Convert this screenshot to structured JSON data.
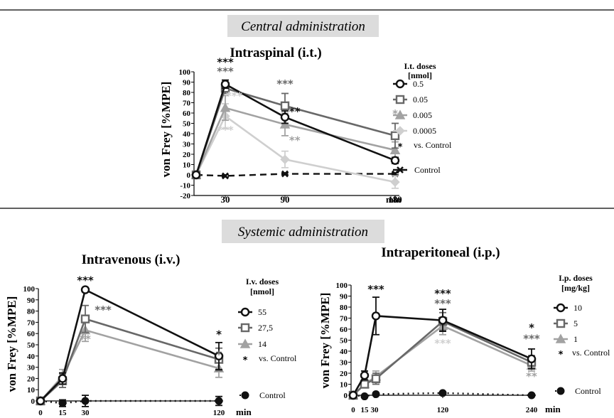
{
  "sections": {
    "central": "Central administration",
    "systemic": "Systemic administration"
  },
  "colors": {
    "black": "#111111",
    "dark": "#686868",
    "mid": "#a2a2a2",
    "light": "#cfcfcf",
    "band": "#dcdcdc"
  },
  "chart_data": [
    {
      "type": "line",
      "title": "Intraspinal (i.t.)",
      "ylabel": "von Frey [%MPE]",
      "xunit": "min",
      "xticks": [
        "30",
        "90",
        "180"
      ],
      "yticks": [
        "100",
        "90",
        "80",
        "70",
        "60",
        "50",
        "40",
        "30",
        "20",
        "10",
        "0",
        "-10",
        "-20"
      ],
      "ylim": [
        -20,
        100
      ],
      "legend_title_1": "I.t. doses",
      "legend_title_2": "[nmol]",
      "legend_note": "vs. Control",
      "series": [
        {
          "name": "0.5",
          "color": "#111111",
          "marker": "circle",
          "x": [
            0,
            30,
            90,
            180
          ],
          "y": [
            0,
            88,
            56,
            14
          ],
          "err": [
            0,
            4,
            6,
            3
          ]
        },
        {
          "name": "0.05",
          "color": "#686868",
          "marker": "square",
          "x": [
            0,
            30,
            90,
            180
          ],
          "y": [
            0,
            84,
            67,
            38
          ],
          "err": [
            0,
            5,
            12,
            12
          ]
        },
        {
          "name": "0.005",
          "color": "#a2a2a2",
          "marker": "triangle",
          "x": [
            0,
            30,
            90,
            180
          ],
          "y": [
            0,
            65,
            49,
            24
          ],
          "err": [
            0,
            12,
            11,
            8
          ]
        },
        {
          "name": "0.0005",
          "color": "#cfcfcf",
          "marker": "diamond",
          "x": [
            0,
            30,
            90,
            180
          ],
          "y": [
            0,
            57,
            15,
            -7
          ],
          "err": [
            0,
            12,
            8,
            6
          ]
        },
        {
          "name": "Control",
          "color": "#111111",
          "marker": "x",
          "dashed": true,
          "x": [
            0,
            30,
            90,
            180
          ],
          "y": [
            0,
            -1,
            1,
            1
          ],
          "err": [
            0,
            1,
            1,
            1
          ]
        }
      ],
      "annotations": [
        {
          "text": "***",
          "color": "#111111",
          "x": 30,
          "y": 106
        },
        {
          "text": "***",
          "color": "#686868",
          "x": 30,
          "y": 97
        },
        {
          "text": "***",
          "color": "#cfcfcf",
          "x": 39,
          "y": 73
        },
        {
          "text": "***",
          "color": "#cfcfcf",
          "x": 30,
          "y": 40
        },
        {
          "text": "***",
          "color": "#686868",
          "x": 90,
          "y": 85
        },
        {
          "text": "**",
          "color": "#111111",
          "x": 98,
          "y": 58
        },
        {
          "text": "**",
          "color": "#a2a2a2",
          "x": 98,
          "y": 30
        },
        {
          "text": "*",
          "color": "#a2a2a2",
          "x": 180,
          "y": 56
        }
      ]
    },
    {
      "type": "line",
      "title": "Intravenous (i.v.)",
      "ylabel": "von Frey [%MPE]",
      "xunit": "min",
      "xticks": [
        "0",
        "15",
        "30",
        "120"
      ],
      "yticks": [
        "100",
        "90",
        "80",
        "70",
        "60",
        "50",
        "40",
        "30",
        "20",
        "10",
        "0"
      ],
      "ylim": [
        0,
        100
      ],
      "legend_title_1": "I.v.  doses",
      "legend_title_2": "[nmol]",
      "legend_note": "vs. Control",
      "series": [
        {
          "name": "55",
          "color": "#111111",
          "marker": "circle",
          "x": [
            0,
            15,
            30,
            120
          ],
          "y": [
            0,
            20,
            99,
            40
          ],
          "err": [
            0,
            5,
            2,
            12
          ]
        },
        {
          "name": "27,5",
          "color": "#686868",
          "marker": "square",
          "x": [
            0,
            15,
            30,
            120
          ],
          "y": [
            0,
            18,
            73,
            37
          ],
          "err": [
            0,
            6,
            12,
            10
          ]
        },
        {
          "name": "14",
          "color": "#a2a2a2",
          "marker": "triangle",
          "x": [
            0,
            15,
            30,
            120
          ],
          "y": [
            0,
            22,
            63,
            29
          ],
          "err": [
            0,
            6,
            10,
            8
          ]
        },
        {
          "name": "Control",
          "color": "#111111",
          "marker": "dot",
          "dashed": true,
          "x": [
            0,
            15,
            30,
            120
          ],
          "y": [
            0,
            -2,
            0,
            0
          ],
          "err": [
            0,
            3,
            5,
            4
          ]
        }
      ],
      "annotations": [
        {
          "text": "***",
          "color": "#111111",
          "x": 30,
          "y": 104
        },
        {
          "text": "***",
          "color": "#686868",
          "x": 42,
          "y": 78
        },
        {
          "text": "**",
          "color": "#a2a2a2",
          "x": 30,
          "y": 52
        },
        {
          "text": "*",
          "color": "#111111",
          "x": 120,
          "y": 56
        },
        {
          "text": "*",
          "color": "#686868",
          "x": 130,
          "y": 38
        }
      ]
    },
    {
      "type": "line",
      "title": "Intraperitoneal (i.p.)",
      "ylabel": "von Frey [%MPE]",
      "xunit": "min",
      "xticks": [
        "0",
        "15",
        "30",
        "120",
        "240"
      ],
      "yticks": [
        "100",
        "90",
        "80",
        "70",
        "60",
        "50",
        "40",
        "30",
        "20",
        "10",
        "0"
      ],
      "ylim": [
        0,
        100
      ],
      "legend_title_1": "I.p.  doses",
      "legend_title_2": "[mg/kg]",
      "legend_note": "vs. Control",
      "series": [
        {
          "name": "10",
          "color": "#111111",
          "marker": "circle",
          "x": [
            0,
            15,
            30,
            120,
            240
          ],
          "y": [
            0,
            18,
            72,
            68,
            33
          ],
          "err": [
            0,
            4,
            17,
            10,
            9
          ]
        },
        {
          "name": "5",
          "color": "#686868",
          "marker": "square",
          "x": [
            0,
            15,
            30,
            120,
            240
          ],
          "y": [
            0,
            10,
            15,
            67,
            30
          ],
          "err": [
            0,
            3,
            5,
            8,
            6
          ]
        },
        {
          "name": "1",
          "color": "#a2a2a2",
          "marker": "triangle",
          "x": [
            0,
            15,
            30,
            120,
            240
          ],
          "y": [
            0,
            10,
            17,
            63,
            27
          ],
          "err": [
            0,
            3,
            5,
            8,
            5
          ]
        },
        {
          "name": "Control",
          "color": "#111111",
          "marker": "dot",
          "dashed": true,
          "x": [
            0,
            15,
            30,
            120,
            240
          ],
          "y": [
            0,
            -1,
            1,
            2,
            0
          ],
          "err": [
            0,
            1,
            1,
            1,
            1
          ]
        }
      ],
      "annotations": [
        {
          "text": "***",
          "color": "#111111",
          "x": 30,
          "y": 93
        },
        {
          "text": "***",
          "color": "#111111",
          "x": 120,
          "y": 89
        },
        {
          "text": "***",
          "color": "#686868",
          "x": 120,
          "y": 80
        },
        {
          "text": "***",
          "color": "#cfcfcf",
          "x": 120,
          "y": 44
        },
        {
          "text": "*",
          "color": "#111111",
          "x": 240,
          "y": 58
        },
        {
          "text": "***",
          "color": "#686868",
          "x": 240,
          "y": 48
        },
        {
          "text": "**",
          "color": "#a2a2a2",
          "x": 240,
          "y": 14
        }
      ]
    }
  ]
}
